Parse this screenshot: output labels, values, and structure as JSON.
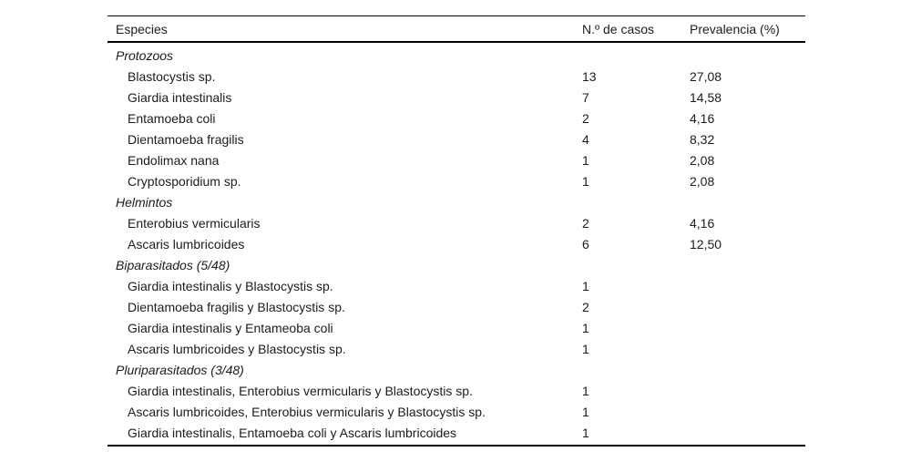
{
  "table": {
    "columns": [
      "Especies",
      "N.º de casos",
      "Prevalencia (%)"
    ],
    "sections": [
      {
        "label": "Protozoos",
        "rows": [
          {
            "species": "Blastocystis sp.",
            "cases": "13",
            "prevalence": "27,08"
          },
          {
            "species": "Giardia intestinalis",
            "cases": "7",
            "prevalence": "14,58"
          },
          {
            "species": "Entamoeba coli",
            "cases": "2",
            "prevalence": "4,16"
          },
          {
            "species": "Dientamoeba fragilis",
            "cases": "4",
            "prevalence": "8,32"
          },
          {
            "species": "Endolimax nana",
            "cases": "1",
            "prevalence": "2,08"
          },
          {
            "species": "Cryptosporidium sp.",
            "cases": "1",
            "prevalence": "2,08"
          }
        ]
      },
      {
        "label": "Helmintos",
        "rows": [
          {
            "species": "Enterobius vermicularis",
            "cases": "2",
            "prevalence": "4,16"
          },
          {
            "species": "Ascaris lumbricoides",
            "cases": "6",
            "prevalence": "12,50"
          }
        ]
      },
      {
        "label": "Biparasitados (5/48)",
        "rows": [
          {
            "species": "Giardia intestinalis y Blastocystis sp.",
            "cases": "1",
            "prevalence": ""
          },
          {
            "species": "Dientamoeba fragilis y Blastocystis sp.",
            "cases": "2",
            "prevalence": ""
          },
          {
            "species": "Giardia intestinalis y Entameoba coli",
            "cases": "1",
            "prevalence": ""
          },
          {
            "species": "Ascaris lumbricoides y Blastocystis sp.",
            "cases": "1",
            "prevalence": ""
          }
        ]
      },
      {
        "label": "Pluriparasitados (3/48)",
        "rows": [
          {
            "species": "Giardia intestinalis, Enterobius vermicularis y Blastocystis sp.",
            "cases": "1",
            "prevalence": ""
          },
          {
            "species": "Ascaris lumbricoides, Enterobius vermicularis y Blastocystis sp.",
            "cases": "1",
            "prevalence": ""
          },
          {
            "species": "Giardia intestinalis, Entamoeba coli y Ascaris lumbricoides",
            "cases": "1",
            "prevalence": ""
          }
        ]
      }
    ]
  },
  "colors": {
    "text": "#1c1c1c",
    "rule": "#000000",
    "background": "#ffffff"
  }
}
